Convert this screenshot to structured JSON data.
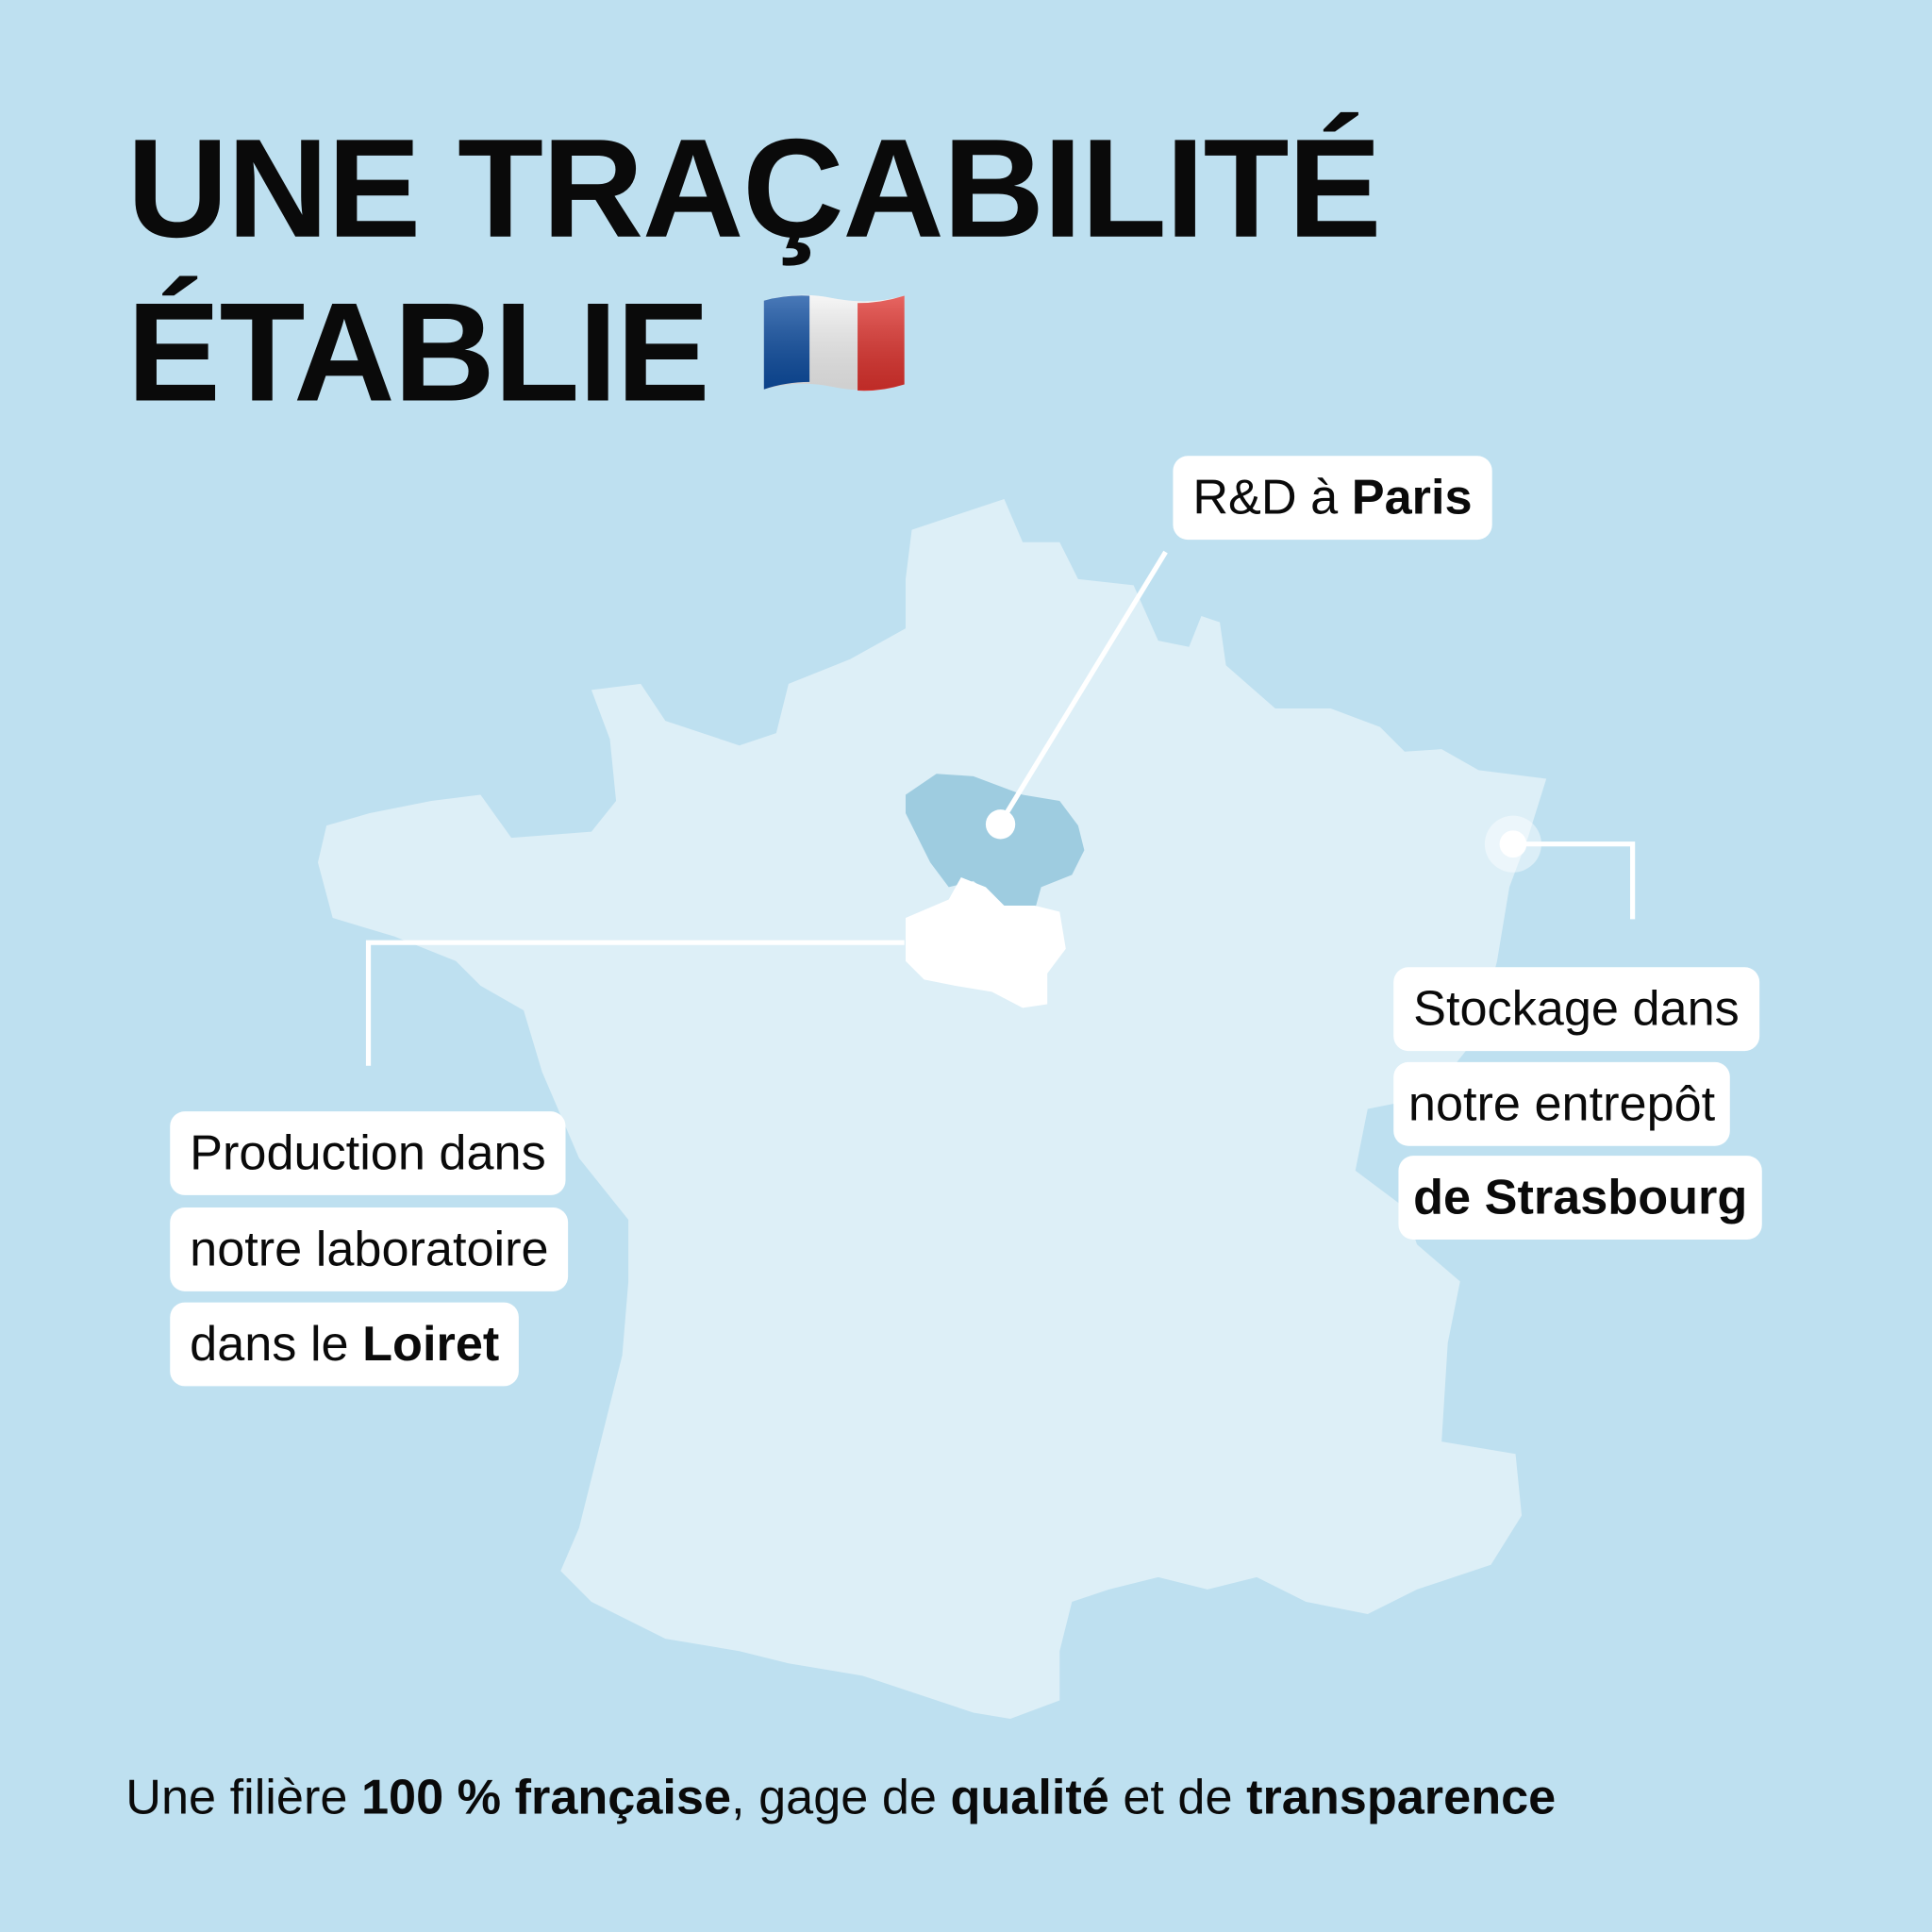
{
  "title": {
    "line1": "UNE TRAÇABILITÉ",
    "line2": "ÉTABLIE",
    "flag_icon": "france-flag-icon"
  },
  "labels": {
    "paris": {
      "prefix": "R&D à ",
      "bold": "Paris"
    },
    "strasbourg": {
      "line1": "Stockage dans",
      "line2": "notre entrepôt",
      "line3_bold": "de Strasbourg"
    },
    "loiret": {
      "line1": "Production dans",
      "line2": "notre laboratoire",
      "line3_prefix": "dans le ",
      "line3_bold": "Loiret"
    }
  },
  "footer": {
    "t1": "Une filière ",
    "b1": "100 % française",
    "t2": ", gage de ",
    "b2": "qualité",
    "t3": " et de ",
    "b3": "transparence"
  },
  "colors": {
    "background": "#BEE0F0",
    "land": "#DDEFF7",
    "ile_de_france": "#9ECCE0",
    "loiret": "#FFFFFF",
    "flag_blue": "#0D4DA1",
    "flag_red": "#E0332E"
  }
}
